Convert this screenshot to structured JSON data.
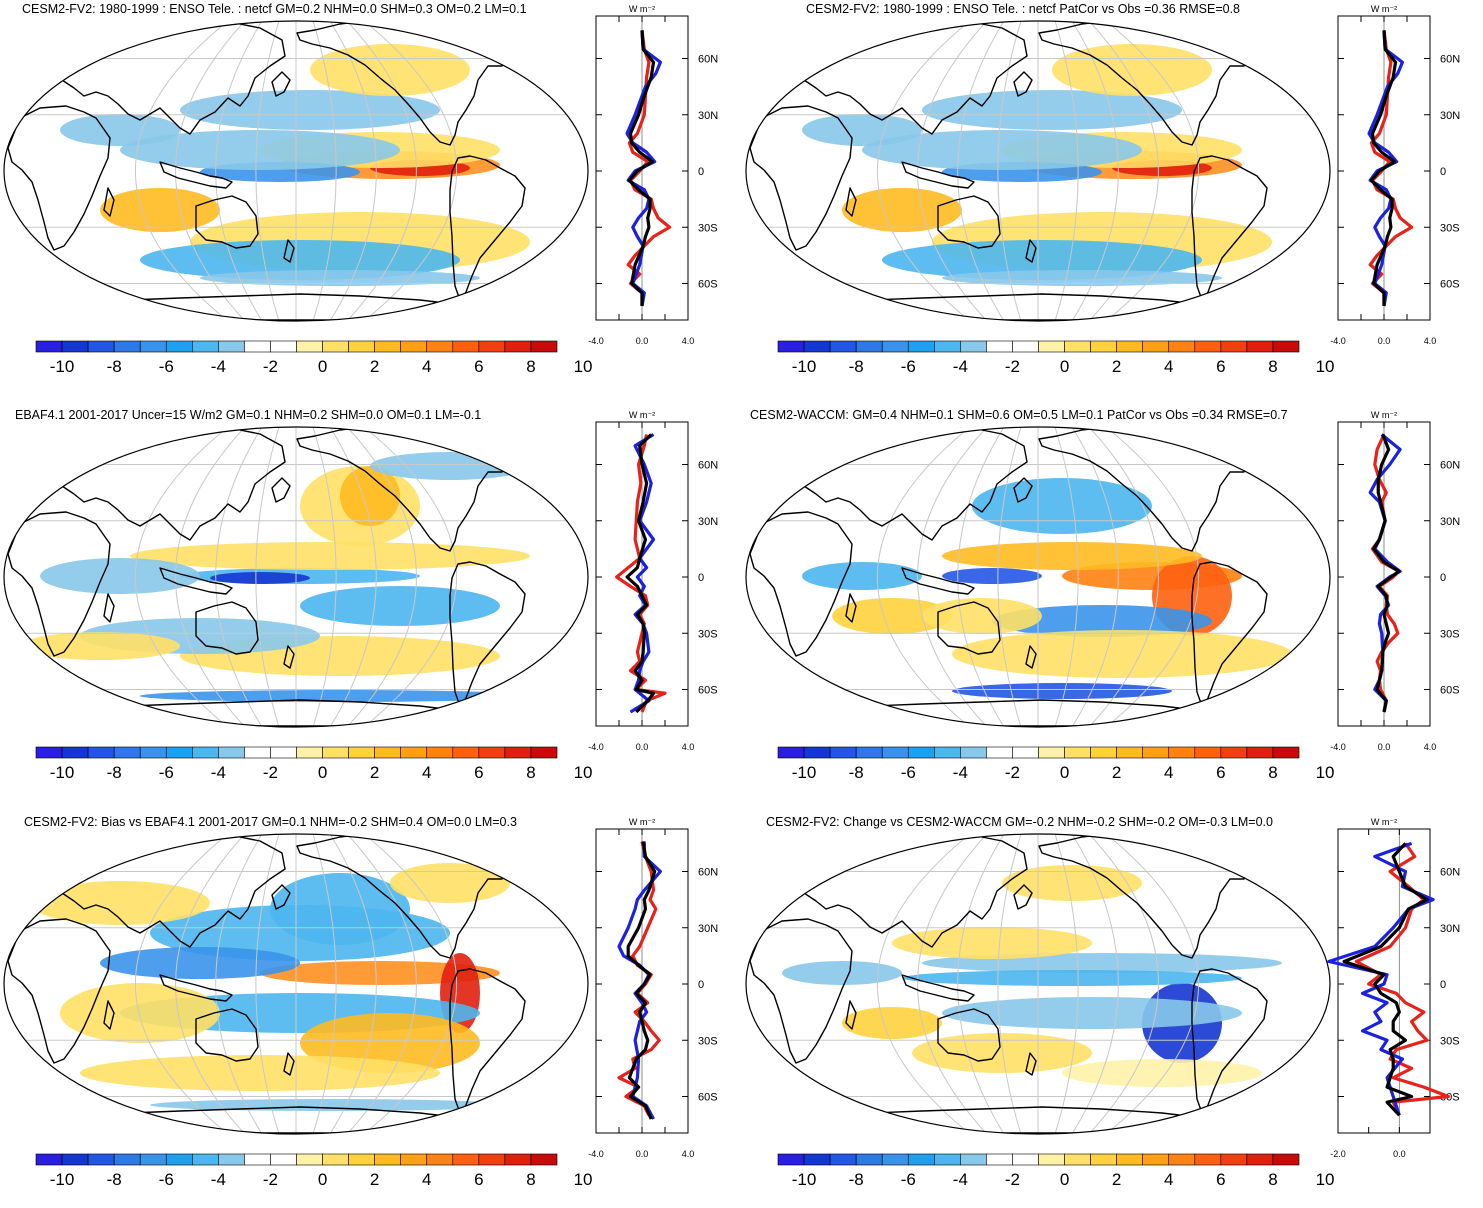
{
  "panels": [
    {
      "id": "p1",
      "title": "CESM2-FV2: 1980-1999 : ENSO Tele. : netcf GM=0.2 NHM=0.0 SHM=0.3 OM=0.2 LM=0.1",
      "profile_unit": "W m⁻²",
      "profile_xticks": [
        "-4.0",
        "0.0",
        "4.0"
      ],
      "lat_ticks": [
        "60N",
        "30N",
        "0",
        "30S",
        "60S"
      ],
      "colorbar_labels": [
        "-10",
        "-8",
        "-6",
        "-4",
        "-2",
        "0",
        "2",
        "4",
        "6",
        "8",
        "10"
      ]
    },
    {
      "id": "p2",
      "title": "CESM2-FV2: 1980-1999 : ENSO Tele. : netcf PatCor vs Obs =0.36 RMSE=0.8",
      "profile_unit": "W m⁻²",
      "profile_xticks": [
        "-4.0",
        "0.0",
        "4.0"
      ],
      "lat_ticks": [
        "60N",
        "30N",
        "0",
        "30S",
        "60S"
      ],
      "colorbar_labels": [
        "-10",
        "-8",
        "-6",
        "-4",
        "-2",
        "0",
        "2",
        "4",
        "6",
        "8",
        "10"
      ]
    },
    {
      "id": "p3",
      "title": "EBAF4.1 2001-2017 Uncer=15 W/m2 GM=0.1 NHM=0.2 SHM=0.0 OM=0.1 LM=-0.1",
      "profile_unit": "W m⁻²",
      "profile_xticks": [
        "-4.0",
        "0.0",
        "4.0"
      ],
      "lat_ticks": [
        "60N",
        "30N",
        "0",
        "30S",
        "60S"
      ],
      "colorbar_labels": [
        "-10",
        "-8",
        "-6",
        "-4",
        "-2",
        "0",
        "2",
        "4",
        "6",
        "8",
        "10"
      ]
    },
    {
      "id": "p4",
      "title": "CESM2-WACCM: GM=0.4 NHM=0.1 SHM=0.6 OM=0.5 LM=0.1 PatCor vs Obs =0.34 RMSE=0.7",
      "profile_unit": "W m⁻²",
      "profile_xticks": [
        "-4.0",
        "0.0",
        "4.0"
      ],
      "lat_ticks": [
        "60N",
        "30N",
        "0",
        "30S",
        "60S"
      ],
      "colorbar_labels": [
        "-10",
        "-8",
        "-6",
        "-4",
        "-2",
        "0",
        "2",
        "4",
        "6",
        "8",
        "10"
      ]
    },
    {
      "id": "p5",
      "title": "CESM2-FV2: Bias vs EBAF4.1 2001-2017 GM=0.1 NHM=-0.2 SHM=0.4 OM=0.0 LM=0.3",
      "profile_unit": "W m⁻²",
      "profile_xticks": [
        "-4.0",
        "0.0",
        "4.0"
      ],
      "lat_ticks": [
        "60N",
        "30N",
        "0",
        "30S",
        "60S"
      ],
      "colorbar_labels": [
        "-10",
        "-8",
        "-6",
        "-4",
        "-2",
        "0",
        "2",
        "4",
        "6",
        "8",
        "10"
      ]
    },
    {
      "id": "p6",
      "title": "CESM2-FV2: Change vs CESM2-WACCM GM=-0.2 NHM=-0.2 SHM=-0.2 OM=-0.3 LM=0.0",
      "profile_unit": "W m⁻²",
      "profile_xticks": [
        "-2.0",
        "0.0"
      ],
      "lat_ticks": [
        "60N",
        "30N",
        "0",
        "30S",
        "60S"
      ],
      "colorbar_labels": [
        "-10",
        "-8",
        "-6",
        "-4",
        "-2",
        "0",
        "2",
        "4",
        "6",
        "8",
        "10"
      ]
    }
  ],
  "colorbar_colors": [
    "#2a1ee0",
    "#1436d2",
    "#2356e6",
    "#2f78e8",
    "#3a93ea",
    "#1ea0f0",
    "#4cb6ee",
    "#88c8ea",
    "#ffffff",
    "#ffffff",
    "#fff2a8",
    "#ffe066",
    "#ffd23c",
    "#ffba20",
    "#ff9f14",
    "#ff8212",
    "#ff6010",
    "#f04010",
    "#e0200e",
    "#c80a0a"
  ],
  "profile_colors": {
    "model": "#e8221a",
    "obs": "#1a22e0",
    "mean": "#000000"
  }
}
